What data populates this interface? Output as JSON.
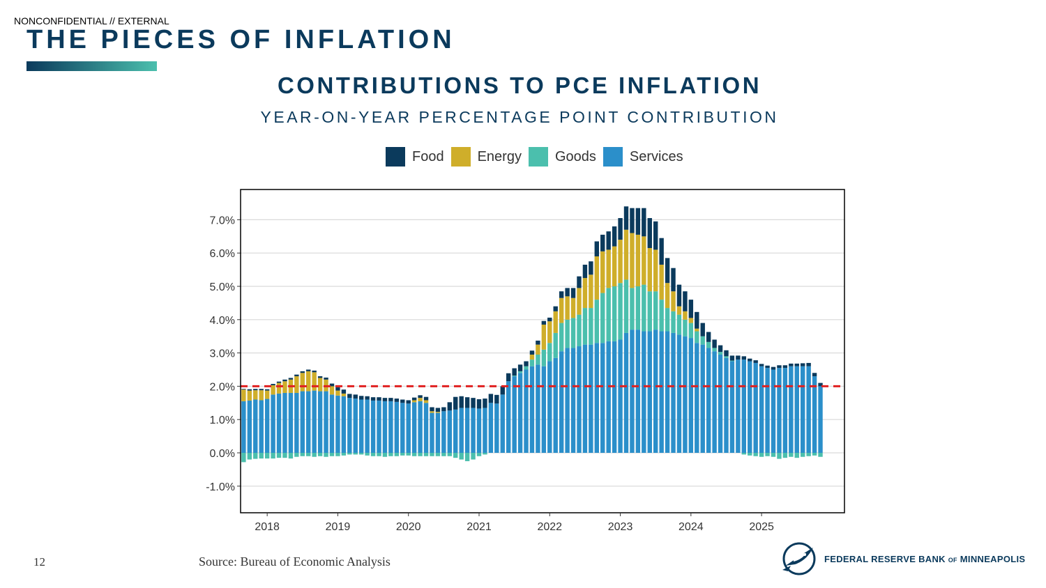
{
  "header": {
    "classification": "NONCONFIDENTIAL // EXTERNAL",
    "title": "THE PIECES OF INFLATION"
  },
  "chart_title": "CONTRIBUTIONS TO PCE INFLATION",
  "chart_subtitle": "YEAR-ON-YEAR PERCENTAGE POINT CONTRIBUTION",
  "footer": {
    "page_number": "12",
    "source": "Source: Bureau of Economic Analysis",
    "logo_text_main": "FEDERAL RESERVE BANK",
    "logo_text_of": "OF",
    "logo_text_city": "MINNEAPOLIS"
  },
  "colors": {
    "brand": "#0b3a5c",
    "food": "#0b3a5c",
    "energy": "#cfae2a",
    "goods": "#4bbfad",
    "services": "#2b8fca",
    "target_line": "#e02020"
  },
  "chart_data": {
    "type": "bar",
    "stacked": true,
    "x_start": "2017-09",
    "x_frequency": "monthly",
    "xtick_labels": [
      "2018",
      "2019",
      "2020",
      "2021",
      "2022",
      "2023",
      "2024",
      "2025"
    ],
    "ytick_labels": [
      "-1.0%",
      "0.0%",
      "1.0%",
      "2.0%",
      "3.0%",
      "4.0%",
      "5.0%",
      "6.0%",
      "7.0%"
    ],
    "ylim": [
      -1.8,
      7.8
    ],
    "reference_line": {
      "y": 2.0,
      "style": "dashed"
    },
    "grid": "horizontal",
    "legend_position": "top",
    "series": [
      {
        "name": "Food",
        "values": [
          0.02,
          0.04,
          0.04,
          0.04,
          0.04,
          0.04,
          0.04,
          0.05,
          0.05,
          0.05,
          0.05,
          0.05,
          0.05,
          0.05,
          0.06,
          0.08,
          0.1,
          0.12,
          0.12,
          0.12,
          0.11,
          0.1,
          0.1,
          0.1,
          0.1,
          0.1,
          0.1,
          0.1,
          0.1,
          0.08,
          0.08,
          0.1,
          0.12,
          0.12,
          0.12,
          0.25,
          0.38,
          0.35,
          0.32,
          0.3,
          0.28,
          0.28,
          0.27,
          0.26,
          0.25,
          0.24,
          0.22,
          0.2,
          0.15,
          0.12,
          0.12,
          0.11,
          0.11,
          0.15,
          0.2,
          0.25,
          0.3,
          0.35,
          0.4,
          0.4,
          0.45,
          0.5,
          0.55,
          0.6,
          0.65,
          0.7,
          0.75,
          0.8,
          0.85,
          0.9,
          0.85,
          0.8,
          0.75,
          0.7,
          0.65,
          0.6,
          0.55,
          0.5,
          0.4,
          0.3,
          0.25,
          0.2,
          0.18,
          0.15,
          0.12,
          0.1,
          0.08,
          0.08,
          0.07,
          0.07,
          0.08,
          0.08,
          0.08,
          0.08,
          0.08,
          0.09,
          0.1,
          0.1,
          0.1
        ]
      },
      {
        "name": "Energy",
        "values": [
          0.35,
          0.3,
          0.28,
          0.3,
          0.25,
          0.28,
          0.32,
          0.35,
          0.4,
          0.5,
          0.55,
          0.6,
          0.55,
          0.4,
          0.35,
          0.25,
          0.15,
          0.08,
          0,
          0,
          0,
          0,
          0,
          0,
          0,
          0,
          0,
          0,
          0,
          0.06,
          0.1,
          0.08,
          0.05,
          0.03,
          0,
          0,
          0,
          0,
          0,
          0,
          0,
          0,
          0,
          0,
          0,
          0,
          0,
          0,
          0,
          0.15,
          0.3,
          0.75,
          0.65,
          0.65,
          0.75,
          0.7,
          0.6,
          0.8,
          0.9,
          1.0,
          1.3,
          1.25,
          1.15,
          1.2,
          1.3,
          1.5,
          1.65,
          1.55,
          1.45,
          1.3,
          1.25,
          1.05,
          0.75,
          0.6,
          0.25,
          0.25,
          0.15,
          0.08,
          0,
          0,
          0,
          0,
          0,
          0,
          0,
          0,
          0,
          0,
          0,
          0,
          0,
          0,
          0,
          0,
          0,
          0,
          0,
          0,
          0
        ]
      },
      {
        "name": "Goods",
        "values": [
          -0.28,
          -0.2,
          -0.18,
          -0.17,
          -0.17,
          -0.17,
          -0.15,
          -0.15,
          -0.17,
          -0.12,
          -0.1,
          -0.1,
          -0.12,
          -0.1,
          -0.12,
          -0.1,
          -0.1,
          -0.08,
          -0.05,
          -0.05,
          -0.05,
          -0.08,
          -0.1,
          -0.1,
          -0.12,
          -0.1,
          -0.1,
          -0.08,
          -0.08,
          -0.1,
          -0.1,
          -0.1,
          -0.1,
          -0.1,
          -0.1,
          -0.1,
          -0.15,
          -0.2,
          -0.25,
          -0.2,
          -0.1,
          -0.05,
          0,
          0,
          0,
          0,
          0.02,
          0.05,
          0.1,
          0.2,
          0.3,
          0.5,
          0.55,
          0.75,
          0.85,
          0.85,
          0.9,
          0.95,
          1.1,
          1.1,
          1.3,
          1.5,
          1.6,
          1.65,
          1.7,
          1.6,
          1.25,
          1.3,
          1.4,
          1.2,
          1.15,
          0.95,
          0.7,
          0.65,
          0.6,
          0.5,
          0.45,
          0.35,
          0.25,
          0.18,
          0.1,
          0.08,
          0.05,
          0.02,
          0,
          -0.05,
          -0.08,
          -0.1,
          -0.12,
          -0.1,
          -0.12,
          -0.18,
          -0.15,
          -0.12,
          -0.15,
          -0.12,
          -0.1,
          -0.08,
          -0.12
        ]
      },
      {
        "name": "Services",
        "values": [
          1.55,
          1.57,
          1.6,
          1.58,
          1.62,
          1.75,
          1.78,
          1.8,
          1.8,
          1.8,
          1.85,
          1.85,
          1.87,
          1.85,
          1.85,
          1.75,
          1.72,
          1.7,
          1.65,
          1.63,
          1.6,
          1.6,
          1.57,
          1.57,
          1.55,
          1.55,
          1.53,
          1.5,
          1.48,
          1.52,
          1.55,
          1.5,
          1.2,
          1.2,
          1.25,
          1.27,
          1.3,
          1.35,
          1.35,
          1.35,
          1.33,
          1.35,
          1.5,
          1.48,
          1.75,
          2.15,
          2.3,
          2.4,
          2.5,
          2.6,
          2.65,
          2.6,
          2.75,
          2.85,
          3.05,
          3.15,
          3.15,
          3.2,
          3.25,
          3.25,
          3.3,
          3.3,
          3.35,
          3.35,
          3.4,
          3.6,
          3.7,
          3.7,
          3.65,
          3.65,
          3.7,
          3.65,
          3.65,
          3.6,
          3.55,
          3.5,
          3.45,
          3.3,
          3.25,
          3.15,
          3.05,
          2.95,
          2.85,
          2.75,
          2.8,
          2.8,
          2.75,
          2.7,
          2.6,
          2.55,
          2.5,
          2.55,
          2.55,
          2.6,
          2.6,
          2.6,
          2.6,
          2.3,
          2.0
        ]
      }
    ]
  }
}
